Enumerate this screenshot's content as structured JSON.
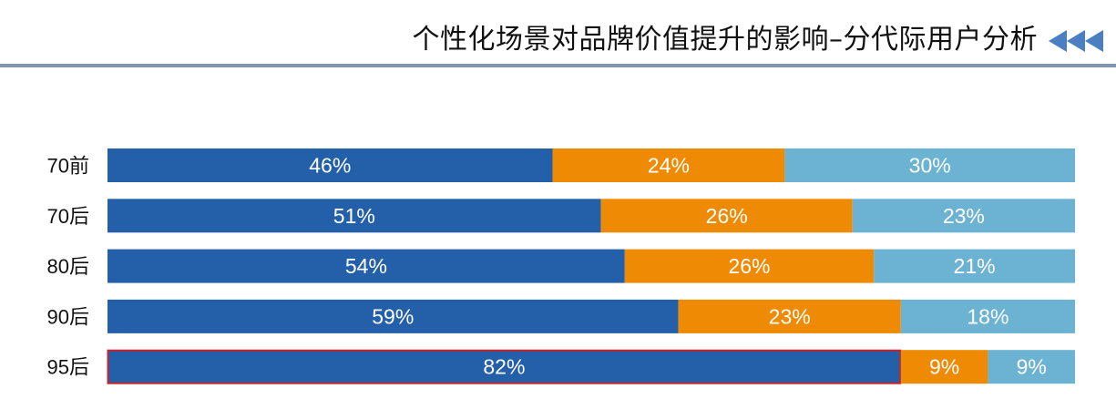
{
  "header": {
    "title": "个性化场景对品牌价值提升的影响–分代际用户分析"
  },
  "colors": {
    "series_1": "#245fa9",
    "series_2": "#ef8a05",
    "series_3": "#6cb2d2",
    "highlight_border": "#c4252b",
    "header_rule": "#7f98b5",
    "arrows": "#4a7fc1"
  },
  "chart_data": {
    "type": "bar",
    "orientation": "horizontal",
    "stacked": true,
    "percent_stacked": true,
    "categories": [
      "70前",
      "70后",
      "80后",
      "90后",
      "95后"
    ],
    "series": [
      {
        "values": [
          46,
          51,
          54,
          59,
          82
        ],
        "labels": [
          "46%",
          "51%",
          "54%",
          "59%",
          "82%"
        ]
      },
      {
        "values": [
          24,
          26,
          26,
          23,
          9
        ],
        "labels": [
          "24%",
          "26%",
          "26%",
          "23%",
          "9%"
        ]
      },
      {
        "values": [
          30,
          23,
          21,
          18,
          9
        ],
        "labels": [
          "30%",
          "23%",
          "21%",
          "18%",
          "9%"
        ]
      }
    ],
    "highlighted": {
      "category": "95后",
      "series_index": 0
    },
    "xlim": [
      0,
      100
    ],
    "grid": false,
    "legend": "none"
  }
}
